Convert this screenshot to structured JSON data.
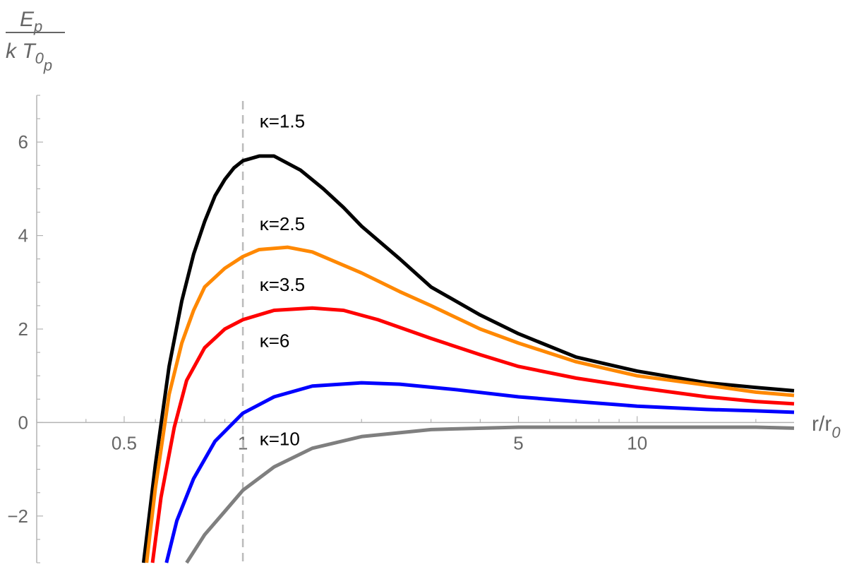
{
  "chart_data": {
    "type": "line",
    "x_scale": "log",
    "xlim": [
      0.3,
      25
    ],
    "ylim": [
      -3,
      7
    ],
    "x_ticks": [
      {
        "value": 0.5,
        "label": "0.5"
      },
      {
        "value": 1,
        "label": "1"
      },
      {
        "value": 5,
        "label": "5"
      },
      {
        "value": 10,
        "label": "10"
      }
    ],
    "y_ticks": [
      {
        "value": -2,
        "label": "−2"
      },
      {
        "value": 0,
        "label": "0"
      },
      {
        "value": 2,
        "label": "2"
      },
      {
        "value": 4,
        "label": "4"
      },
      {
        "value": 6,
        "label": "6"
      }
    ],
    "xlabel": {
      "main": "r/r",
      "sub": "0"
    },
    "ylabel": {
      "numerator": "E",
      "numerator_sub": "p",
      "denominator": "k T",
      "denominator_sub": "0",
      "denominator_subsub": "p"
    },
    "reference_line": {
      "x": 1,
      "style": "dashed",
      "color": "#bbbbbb"
    },
    "grid": false,
    "series": [
      {
        "name": "κ=1.5",
        "color": "#000000",
        "label_at": [
          1.3,
          6.45
        ],
        "points": [
          [
            0.56,
            -3.0
          ],
          [
            0.6,
            -0.9
          ],
          [
            0.65,
            1.2
          ],
          [
            0.7,
            2.6
          ],
          [
            0.75,
            3.6
          ],
          [
            0.8,
            4.3
          ],
          [
            0.85,
            4.85
          ],
          [
            0.9,
            5.2
          ],
          [
            0.95,
            5.45
          ],
          [
            1.0,
            5.6
          ],
          [
            1.1,
            5.7
          ],
          [
            1.2,
            5.7
          ],
          [
            1.4,
            5.4
          ],
          [
            1.6,
            5.0
          ],
          [
            1.8,
            4.6
          ],
          [
            2.0,
            4.2
          ],
          [
            2.5,
            3.5
          ],
          [
            3.0,
            2.9
          ],
          [
            4.0,
            2.3
          ],
          [
            5.0,
            1.9
          ],
          [
            7.0,
            1.4
          ],
          [
            10.0,
            1.1
          ],
          [
            15.0,
            0.85
          ],
          [
            20.0,
            0.75
          ],
          [
            25.0,
            0.68
          ]
        ]
      },
      {
        "name": "κ=2.5",
        "color": "#ff8800",
        "label_at": [
          1.3,
          4.25
        ],
        "points": [
          [
            0.57,
            -3.0
          ],
          [
            0.6,
            -1.4
          ],
          [
            0.65,
            0.6
          ],
          [
            0.7,
            1.7
          ],
          [
            0.75,
            2.4
          ],
          [
            0.8,
            2.9
          ],
          [
            0.9,
            3.3
          ],
          [
            1.0,
            3.55
          ],
          [
            1.1,
            3.7
          ],
          [
            1.3,
            3.75
          ],
          [
            1.5,
            3.65
          ],
          [
            2.0,
            3.2
          ],
          [
            2.5,
            2.8
          ],
          [
            3.0,
            2.5
          ],
          [
            4.0,
            2.0
          ],
          [
            5.0,
            1.7
          ],
          [
            7.0,
            1.3
          ],
          [
            10.0,
            1.0
          ],
          [
            15.0,
            0.8
          ],
          [
            20.0,
            0.65
          ],
          [
            25.0,
            0.58
          ]
        ]
      },
      {
        "name": "κ=3.5",
        "color": "#ff0000",
        "label_at": [
          1.3,
          2.95
        ],
        "points": [
          [
            0.59,
            -3.0
          ],
          [
            0.62,
            -1.6
          ],
          [
            0.67,
            -0.1
          ],
          [
            0.72,
            0.9
          ],
          [
            0.8,
            1.6
          ],
          [
            0.9,
            2.0
          ],
          [
            1.0,
            2.2
          ],
          [
            1.2,
            2.4
          ],
          [
            1.5,
            2.45
          ],
          [
            1.8,
            2.4
          ],
          [
            2.2,
            2.2
          ],
          [
            3.0,
            1.8
          ],
          [
            4.0,
            1.45
          ],
          [
            5.0,
            1.2
          ],
          [
            7.0,
            0.95
          ],
          [
            10.0,
            0.75
          ],
          [
            15.0,
            0.55
          ],
          [
            20.0,
            0.45
          ],
          [
            25.0,
            0.4
          ]
        ]
      },
      {
        "name": "κ=6",
        "color": "#0000ff",
        "label_at": [
          1.3,
          1.75
        ],
        "points": [
          [
            0.64,
            -3.0
          ],
          [
            0.68,
            -2.1
          ],
          [
            0.75,
            -1.2
          ],
          [
            0.85,
            -0.4
          ],
          [
            1.0,
            0.2
          ],
          [
            1.2,
            0.55
          ],
          [
            1.5,
            0.78
          ],
          [
            2.0,
            0.85
          ],
          [
            2.5,
            0.82
          ],
          [
            3.5,
            0.7
          ],
          [
            5.0,
            0.55
          ],
          [
            7.0,
            0.45
          ],
          [
            10.0,
            0.35
          ],
          [
            15.0,
            0.28
          ],
          [
            20.0,
            0.25
          ],
          [
            25.0,
            0.22
          ]
        ]
      },
      {
        "name": "κ=10",
        "color": "#7f7f7f",
        "label_at": [
          1.3,
          -0.35
        ],
        "points": [
          [
            0.72,
            -3.0
          ],
          [
            0.8,
            -2.4
          ],
          [
            0.9,
            -1.9
          ],
          [
            1.0,
            -1.45
          ],
          [
            1.2,
            -0.95
          ],
          [
            1.5,
            -0.55
          ],
          [
            2.0,
            -0.3
          ],
          [
            3.0,
            -0.15
          ],
          [
            5.0,
            -0.1
          ],
          [
            7.0,
            -0.1
          ],
          [
            10.0,
            -0.1
          ],
          [
            15.0,
            -0.1
          ],
          [
            20.0,
            -0.1
          ],
          [
            25.0,
            -0.12
          ]
        ]
      }
    ]
  }
}
